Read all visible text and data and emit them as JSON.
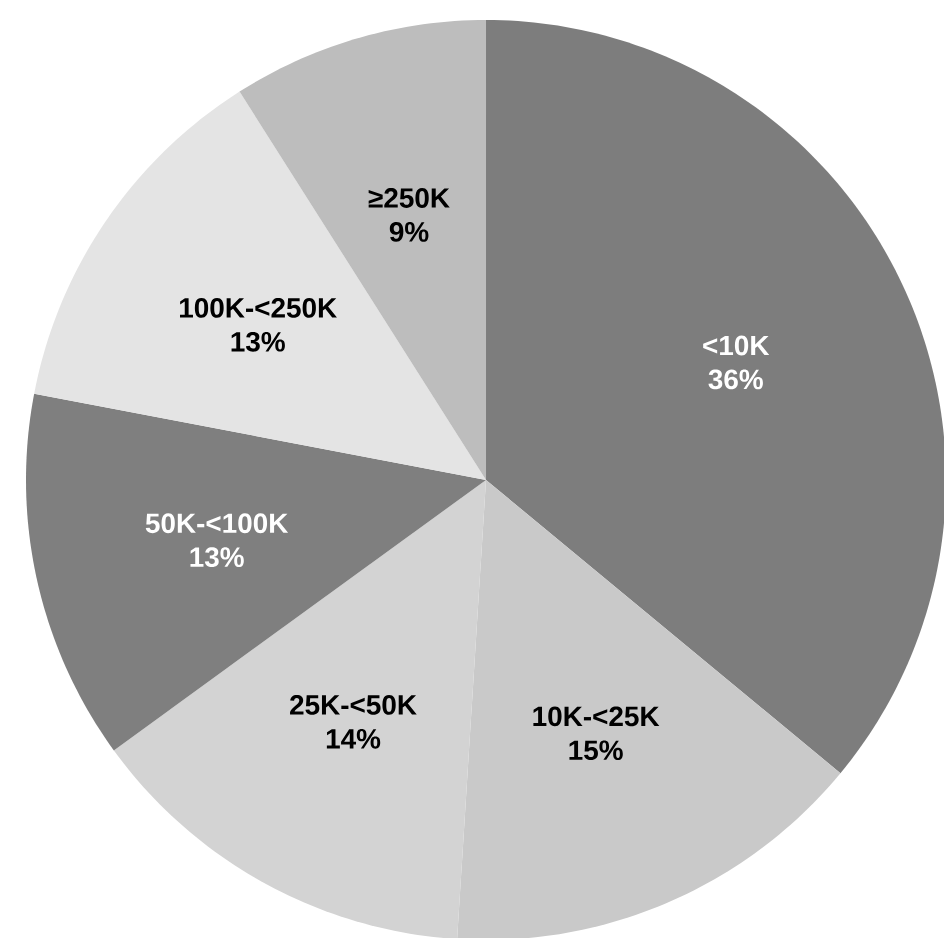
{
  "chart_data": {
    "type": "pie",
    "categories": [
      "<10K",
      "10K-<25K",
      "25K-<50K",
      "50K-<100K",
      "100K-<250K",
      "≥250K"
    ],
    "values": [
      36,
      15,
      14,
      13,
      13,
      9
    ],
    "value_labels": [
      "36%",
      "15%",
      "14%",
      "13%",
      "13%",
      "9%"
    ],
    "colors": [
      "#7d7d7d",
      "#c9c9c9",
      "#d3d3d3",
      "#7f7f7f",
      "#e4e4e4",
      "#bdbdbd"
    ]
  }
}
